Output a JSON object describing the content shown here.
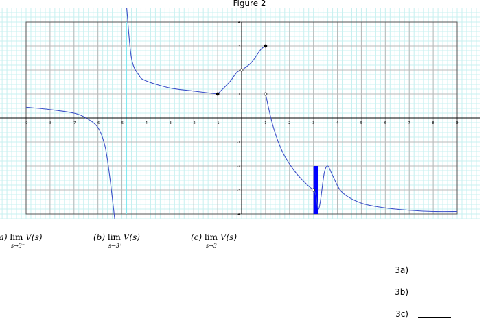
{
  "figure": {
    "title": "Figure 2"
  },
  "chart_data": {
    "type": "line",
    "xlim": [
      -9,
      9
    ],
    "ylim": [
      -4,
      4
    ],
    "x_ticks": [
      -9,
      -8,
      -7,
      -6,
      -5,
      -4,
      -3,
      -2,
      -1,
      0,
      1,
      2,
      3,
      4,
      5,
      6,
      7,
      8,
      9
    ],
    "y_ticks": [
      -4,
      -3,
      -2,
      -1,
      1,
      2,
      3,
      4
    ],
    "grid": true,
    "vertical_asymptotes": [
      -5.2,
      -4.8,
      -3
    ],
    "series": [
      {
        "points": [
          [
            -9,
            0.45
          ],
          [
            -8,
            0.35
          ],
          [
            -7,
            0.2
          ],
          [
            -6.5,
            0.0
          ],
          [
            -6,
            -0.4
          ],
          [
            -5.7,
            -1.2
          ],
          [
            -5.5,
            -2.5
          ],
          [
            -5.3,
            -4.2
          ]
        ]
      },
      {
        "points": [
          [
            -4.8,
            4.6
          ],
          [
            -4.6,
            2.5
          ],
          [
            -4.3,
            1.8
          ],
          [
            -4,
            1.55
          ],
          [
            -3,
            1.25
          ],
          [
            -2,
            1.12
          ],
          [
            -1,
            1.0
          ]
        ]
      },
      {
        "points": [
          [
            -1,
            1.0
          ],
          [
            -0.5,
            1.5
          ],
          [
            -0.2,
            1.9
          ],
          [
            0,
            2.0
          ],
          [
            0.4,
            2.3
          ],
          [
            0.8,
            2.85
          ],
          [
            1,
            3.0
          ]
        ]
      },
      {
        "points": [
          [
            1,
            1.0
          ],
          [
            1.3,
            -0.3
          ],
          [
            1.7,
            -1.4
          ],
          [
            2.2,
            -2.2
          ],
          [
            2.7,
            -2.75
          ],
          [
            3,
            -3.0
          ]
        ]
      },
      {
        "points": [
          [
            3,
            -3.0
          ],
          [
            3.1,
            -3.2
          ],
          [
            3.2,
            -3.8
          ],
          [
            3.3,
            -3.4
          ],
          [
            3.45,
            -2.3
          ],
          [
            3.6,
            -2.0
          ],
          [
            3.8,
            -2.4
          ],
          [
            4.2,
            -3.1
          ],
          [
            5,
            -3.55
          ],
          [
            6,
            -3.75
          ],
          [
            7,
            -3.85
          ],
          [
            8,
            -3.9
          ],
          [
            9,
            -3.9
          ]
        ]
      }
    ],
    "markers": [
      {
        "x": -1,
        "y": 1,
        "filled": true
      },
      {
        "x": 0,
        "y": 2,
        "filled": false
      },
      {
        "x": 1,
        "y": 3,
        "filled": true
      },
      {
        "x": 1,
        "y": 1,
        "filled": false
      },
      {
        "x": 3,
        "y": -3,
        "filled": false
      }
    ],
    "highlight_band": {
      "x": [
        3.0,
        3.2
      ],
      "y": [
        -2,
        -4
      ],
      "color": "#0000ff"
    },
    "colors": {
      "curve": "#3c50c8",
      "grid_minor": "#c8f0f0",
      "grid_major": "#b8b8b8",
      "axis": "#000000",
      "asymptote": "#7fe8f0"
    }
  },
  "limits": [
    {
      "prefix": "(a)",
      "lim": "lim",
      "func": "V(s)",
      "sub": "s→3⁻"
    },
    {
      "prefix": "(b)",
      "lim": "lim",
      "func": "V(s)",
      "sub": "s→3⁺"
    },
    {
      "prefix": "(c)",
      "lim": "lim",
      "func": "V(s)",
      "sub": "s→3"
    }
  ],
  "answers": [
    {
      "label": "3a)",
      "value": ""
    },
    {
      "label": "3b)",
      "value": ""
    },
    {
      "label": "3c)",
      "value": ""
    }
  ]
}
